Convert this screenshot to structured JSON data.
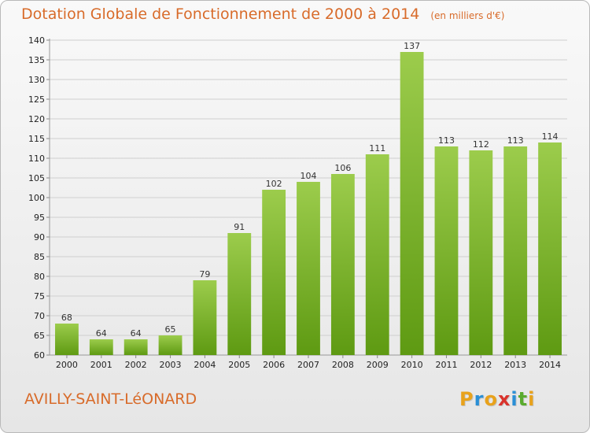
{
  "header": {
    "title": "Dotation Globale de Fonctionnement de 2000 à 2014",
    "unit_note": "(en milliers d'€)"
  },
  "footer": {
    "commune": "AVILLY-SAINT-LéONARD",
    "logo_letters": [
      "P",
      "r",
      "o",
      "x",
      "i",
      "t",
      "i"
    ],
    "logo_colors": [
      "#e8a21c",
      "#2a8fd6",
      "#e8a21c",
      "#d9332c",
      "#2a8fd6",
      "#5aab2e",
      "#e8a21c"
    ]
  },
  "chart_data": {
    "type": "bar",
    "title": "Dotation Globale de Fonctionnement de 2000 à 2014",
    "subtitle": "(en milliers d'€)",
    "xlabel": "",
    "ylabel": "",
    "categories": [
      "2000",
      "2001",
      "2002",
      "2003",
      "2004",
      "2005",
      "2006",
      "2007",
      "2008",
      "2009",
      "2010",
      "2011",
      "2012",
      "2013",
      "2014"
    ],
    "values": [
      68,
      64,
      64,
      65,
      79,
      91,
      102,
      104,
      106,
      111,
      137,
      113,
      112,
      113,
      114
    ],
    "ylim": [
      60,
      140
    ],
    "yticks": [
      60,
      65,
      70,
      75,
      80,
      85,
      90,
      95,
      100,
      105,
      110,
      115,
      120,
      125,
      130,
      135,
      140
    ],
    "grid": true,
    "bar_color_top": "#9ccc4c",
    "bar_color_bottom": "#5e9a12"
  }
}
